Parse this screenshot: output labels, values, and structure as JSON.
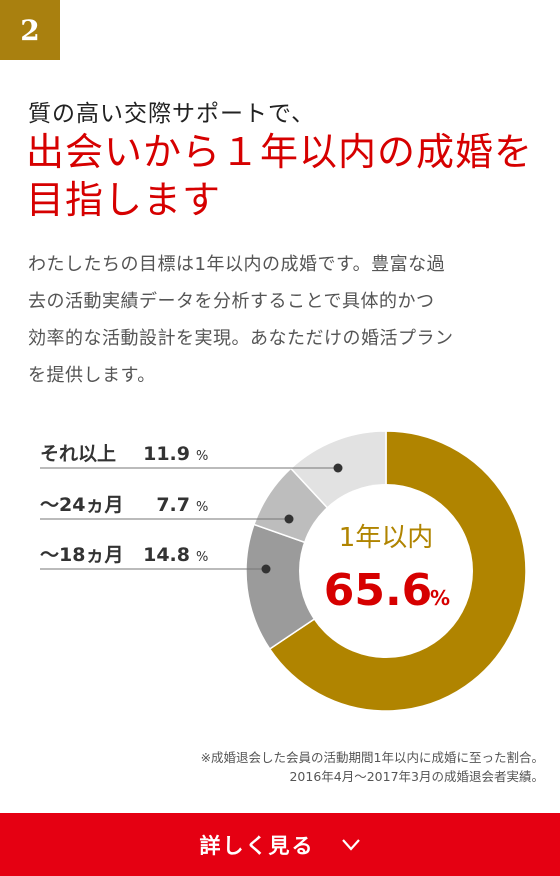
{
  "badge": {
    "number": "2"
  },
  "heading": {
    "lead": "質の高い交際サポートで、",
    "line1": "出会いから１年以内の成婚を",
    "line2": "目指します"
  },
  "description": [
    "わたしたちの目標は1年以内の成婚です。豊富な過",
    "去の活動実績データを分析することで具体的かつ",
    "効率的な活動設計を実現。あなただけの婚活プラン",
    "を提供します。"
  ],
  "chart_data": {
    "type": "pie",
    "variant": "donut",
    "slices": [
      {
        "label": "1年以内",
        "value": 65.6,
        "color": "#b08400"
      },
      {
        "label": "〜18ヵ月",
        "value": 14.8,
        "color": "#9b9b9b"
      },
      {
        "label": "〜24ヵ月",
        "value": 7.7,
        "color": "#bdbdbd"
      },
      {
        "label": "それ以上",
        "value": 11.9,
        "color": "#e2e2e2"
      }
    ],
    "unit": "%",
    "center_label": "1年以内",
    "center_value": "65.6",
    "legend": [
      {
        "label": "それ以上",
        "value": "11.9"
      },
      {
        "label": "〜24ヵ月",
        "value": "7.7"
      },
      {
        "label": "〜18ヵ月",
        "value": "14.8"
      }
    ]
  },
  "note": {
    "line1": "※成婚退会した会員の活動期間1年以内に成婚に至った割合。",
    "line2": "2016年4月〜2017年3月の成婚退会者実績。"
  },
  "cta": {
    "label": "詳しく見る",
    "icon": "chevron-down-icon"
  }
}
